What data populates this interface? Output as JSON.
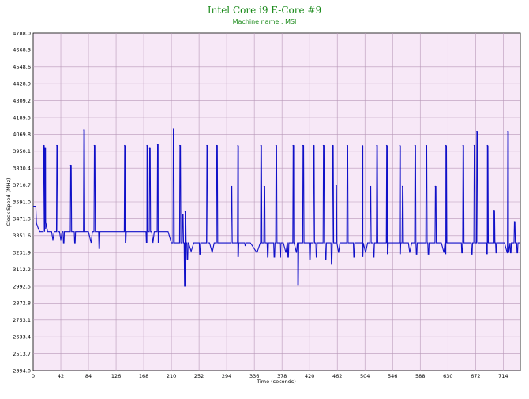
{
  "chart_data": {
    "type": "line",
    "title": "Intel Core i9 E-Core #9",
    "subtitle": "Machine name : MSI",
    "xlabel": "Time (seconds)",
    "ylabel": "Clock Speed (MHz)",
    "xlim": [
      0,
      740
    ],
    "ylim": [
      2394.0,
      4788.0
    ],
    "x_ticks": [
      "0",
      "42",
      "84",
      "126",
      "168",
      "210",
      "252",
      "294",
      "336",
      "378",
      "420",
      "462",
      "504",
      "546",
      "588",
      "630",
      "672",
      "714"
    ],
    "y_ticks": [
      "2394.0",
      "2513.7",
      "2633.4",
      "2753.1",
      "2872.8",
      "2992.5",
      "3112.2",
      "3231.9",
      "3351.6",
      "3471.3",
      "3591.0",
      "3710.7",
      "3830.4",
      "3950.1",
      "4069.8",
      "4189.5",
      "4309.2",
      "4428.9",
      "4548.6",
      "4668.3",
      "4788.0"
    ],
    "grid": true,
    "background_color": "#f7e8f7",
    "grid_color": "#b898b8",
    "line_color": "#1010c8",
    "series": [
      {
        "baseline_points": [
          [
            0,
            3560
          ],
          [
            4,
            3560
          ],
          [
            5,
            3440
          ],
          [
            8,
            3400
          ],
          [
            10,
            3380
          ],
          [
            12,
            3380
          ],
          [
            15,
            3380
          ],
          [
            18,
            3440
          ],
          [
            19,
            3400
          ],
          [
            22,
            3380
          ],
          [
            28,
            3380
          ],
          [
            30,
            3320
          ],
          [
            32,
            3380
          ],
          [
            40,
            3380
          ],
          [
            42,
            3320
          ],
          [
            44,
            3380
          ],
          [
            84,
            3380
          ],
          [
            88,
            3300
          ],
          [
            90,
            3380
          ],
          [
            180,
            3380
          ],
          [
            182,
            3300
          ],
          [
            184,
            3380
          ],
          [
            190,
            3300
          ],
          [
            193,
            3380
          ],
          [
            205,
            3380
          ],
          [
            210,
            3300
          ],
          [
            236,
            3300
          ],
          [
            240,
            3240
          ],
          [
            244,
            3300
          ],
          [
            258,
            3300
          ],
          [
            262,
            3300
          ],
          [
            268,
            3300
          ],
          [
            272,
            3230
          ],
          [
            275,
            3300
          ],
          [
            330,
            3300
          ],
          [
            340,
            3230
          ],
          [
            345,
            3300
          ],
          [
            365,
            3300
          ],
          [
            380,
            3300
          ],
          [
            384,
            3230
          ],
          [
            386,
            3300
          ],
          [
            396,
            3300
          ],
          [
            400,
            3230
          ],
          [
            402,
            3300
          ],
          [
            460,
            3300
          ],
          [
            464,
            3230
          ],
          [
            466,
            3300
          ],
          [
            500,
            3300
          ],
          [
            505,
            3230
          ],
          [
            508,
            3300
          ],
          [
            546,
            3300
          ],
          [
            560,
            3300
          ],
          [
            570,
            3300
          ],
          [
            572,
            3230
          ],
          [
            575,
            3300
          ],
          [
            620,
            3300
          ],
          [
            624,
            3230
          ],
          [
            626,
            3300
          ],
          [
            640,
            3300
          ],
          [
            644,
            3300
          ],
          [
            660,
            3300
          ],
          [
            664,
            3300
          ],
          [
            700,
            3300
          ],
          [
            704,
            3300
          ],
          [
            716,
            3300
          ],
          [
            720,
            3230
          ],
          [
            722,
            3300
          ],
          [
            740,
            3300
          ]
        ],
        "spikes": [
          [
            16,
            3990
          ],
          [
            18,
            3970
          ],
          [
            36,
            3990
          ],
          [
            57,
            3850
          ],
          [
            77,
            4100
          ],
          [
            93,
            3990
          ],
          [
            139,
            3990
          ],
          [
            173,
            3990
          ],
          [
            177,
            3970
          ],
          [
            189,
            4000
          ],
          [
            213,
            4110
          ],
          [
            223,
            3990
          ],
          [
            227,
            3500
          ],
          [
            231,
            3520
          ],
          [
            264,
            3990
          ],
          [
            279,
            3990
          ],
          [
            301,
            3700
          ],
          [
            311,
            3990
          ],
          [
            346,
            3990
          ],
          [
            351,
            3700
          ],
          [
            369,
            3990
          ],
          [
            395,
            3990
          ],
          [
            410,
            3990
          ],
          [
            426,
            3990
          ],
          [
            441,
            3990
          ],
          [
            455,
            3990
          ],
          [
            460,
            3710
          ],
          [
            477,
            3990
          ],
          [
            500,
            3990
          ],
          [
            512,
            3700
          ],
          [
            522,
            3990
          ],
          [
            537,
            3990
          ],
          [
            557,
            3990
          ],
          [
            561,
            3700
          ],
          [
            580,
            3990
          ],
          [
            597,
            3990
          ],
          [
            611,
            3700
          ],
          [
            627,
            3990
          ],
          [
            653,
            3990
          ],
          [
            670,
            3990
          ],
          [
            674,
            4090
          ],
          [
            690,
            3990
          ],
          [
            700,
            3530
          ],
          [
            721,
            4090
          ],
          [
            731,
            3450
          ]
        ],
        "dips": [
          [
            46,
            3300
          ],
          [
            63,
            3300
          ],
          [
            100,
            3260
          ],
          [
            140,
            3300
          ],
          [
            172,
            3300
          ],
          [
            230,
            2990
          ],
          [
            234,
            3180
          ],
          [
            253,
            3220
          ],
          [
            311,
            3200
          ],
          [
            322,
            3280
          ],
          [
            356,
            3200
          ],
          [
            366,
            3200
          ],
          [
            375,
            3200
          ],
          [
            387,
            3200
          ],
          [
            402,
            3000
          ],
          [
            420,
            3180
          ],
          [
            430,
            3200
          ],
          [
            444,
            3180
          ],
          [
            453,
            3150
          ],
          [
            487,
            3200
          ],
          [
            500,
            3200
          ],
          [
            517,
            3200
          ],
          [
            538,
            3220
          ],
          [
            557,
            3220
          ],
          [
            582,
            3220
          ],
          [
            600,
            3220
          ],
          [
            626,
            3220
          ],
          [
            651,
            3230
          ],
          [
            666,
            3220
          ],
          [
            689,
            3220
          ],
          [
            703,
            3230
          ],
          [
            725,
            3230
          ],
          [
            735,
            3230
          ]
        ]
      }
    ]
  }
}
